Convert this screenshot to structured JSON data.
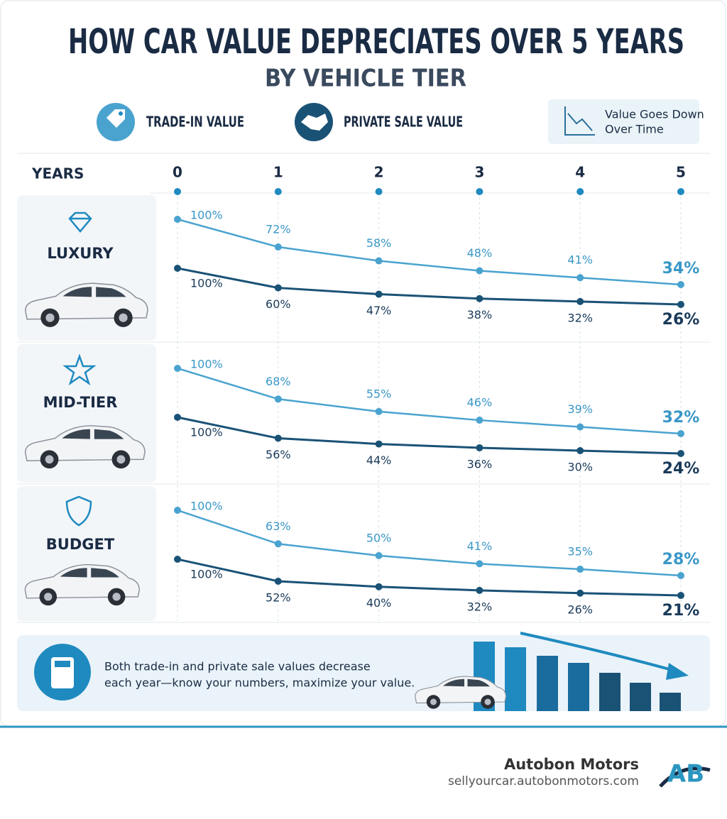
{
  "header": {
    "title": "HOW CAR VALUE DEPRECIATES OVER 5 YEARS",
    "subtitle": "BY VEHICLE TIER"
  },
  "badge": [
    "Value Goes Down",
    "Over Time"
  ],
  "x_axis_label": "YEARS",
  "chart_data": [
    {
      "type": "line",
      "title": "LUXURY",
      "x": [
        0,
        1,
        2,
        3,
        4,
        5
      ],
      "series": [
        {
          "name": "TRADE-IN VALUE",
          "color": "#4aa3cf",
          "values": [
            100,
            72,
            58,
            48,
            41,
            34
          ],
          "value_labels": [
            "100%",
            "72%",
            "58%",
            "48%",
            "41%",
            "34%"
          ]
        },
        {
          "name": "PRIVATE SALE VALUE",
          "color": "#1a5276",
          "values": [
            100,
            60,
            47,
            38,
            32,
            26
          ],
          "value_labels": [
            "100%",
            "60%",
            "47%",
            "38%",
            "32%",
            "26%"
          ]
        }
      ]
    },
    {
      "type": "line",
      "title": "MID-TIER",
      "x": [
        0,
        1,
        2,
        3,
        4,
        5
      ],
      "series": [
        {
          "color": "#4aa3cf",
          "values": [
            100,
            68,
            55,
            46,
            39,
            32
          ],
          "value_labels": [
            "100%",
            "68%",
            "55%",
            "46%",
            "39%",
            "32%"
          ]
        },
        {
          "color": "#1a5276",
          "values": [
            100,
            56,
            44,
            36,
            30,
            24
          ],
          "value_labels": [
            "100%",
            "56%",
            "44%",
            "36%",
            "30%",
            "24%"
          ]
        }
      ]
    },
    {
      "type": "line",
      "title": "BUDGET",
      "x": [
        0,
        1,
        2,
        3,
        4,
        5
      ],
      "series": [
        {
          "color": "#4aa3cf",
          "values": [
            100,
            63,
            50,
            41,
            35,
            28
          ],
          "value_labels": [
            "100%",
            "63%",
            "50%",
            "41%",
            "35%",
            "28%"
          ]
        },
        {
          "color": "#1a5276",
          "values": [
            100,
            52,
            40,
            32,
            26,
            21
          ],
          "value_labels": [
            "100%",
            "52%",
            "40%",
            "32%",
            "26%",
            "21%"
          ]
        }
      ]
    }
  ],
  "banner_text": [
    "Both trade-in and private sale values decrease",
    "each year—know your numbers, maximize your value."
  ],
  "footer": {
    "brand": "Autobon Motors",
    "url": "sellyourcar.autobonmotors.com",
    "logo": "AB"
  }
}
